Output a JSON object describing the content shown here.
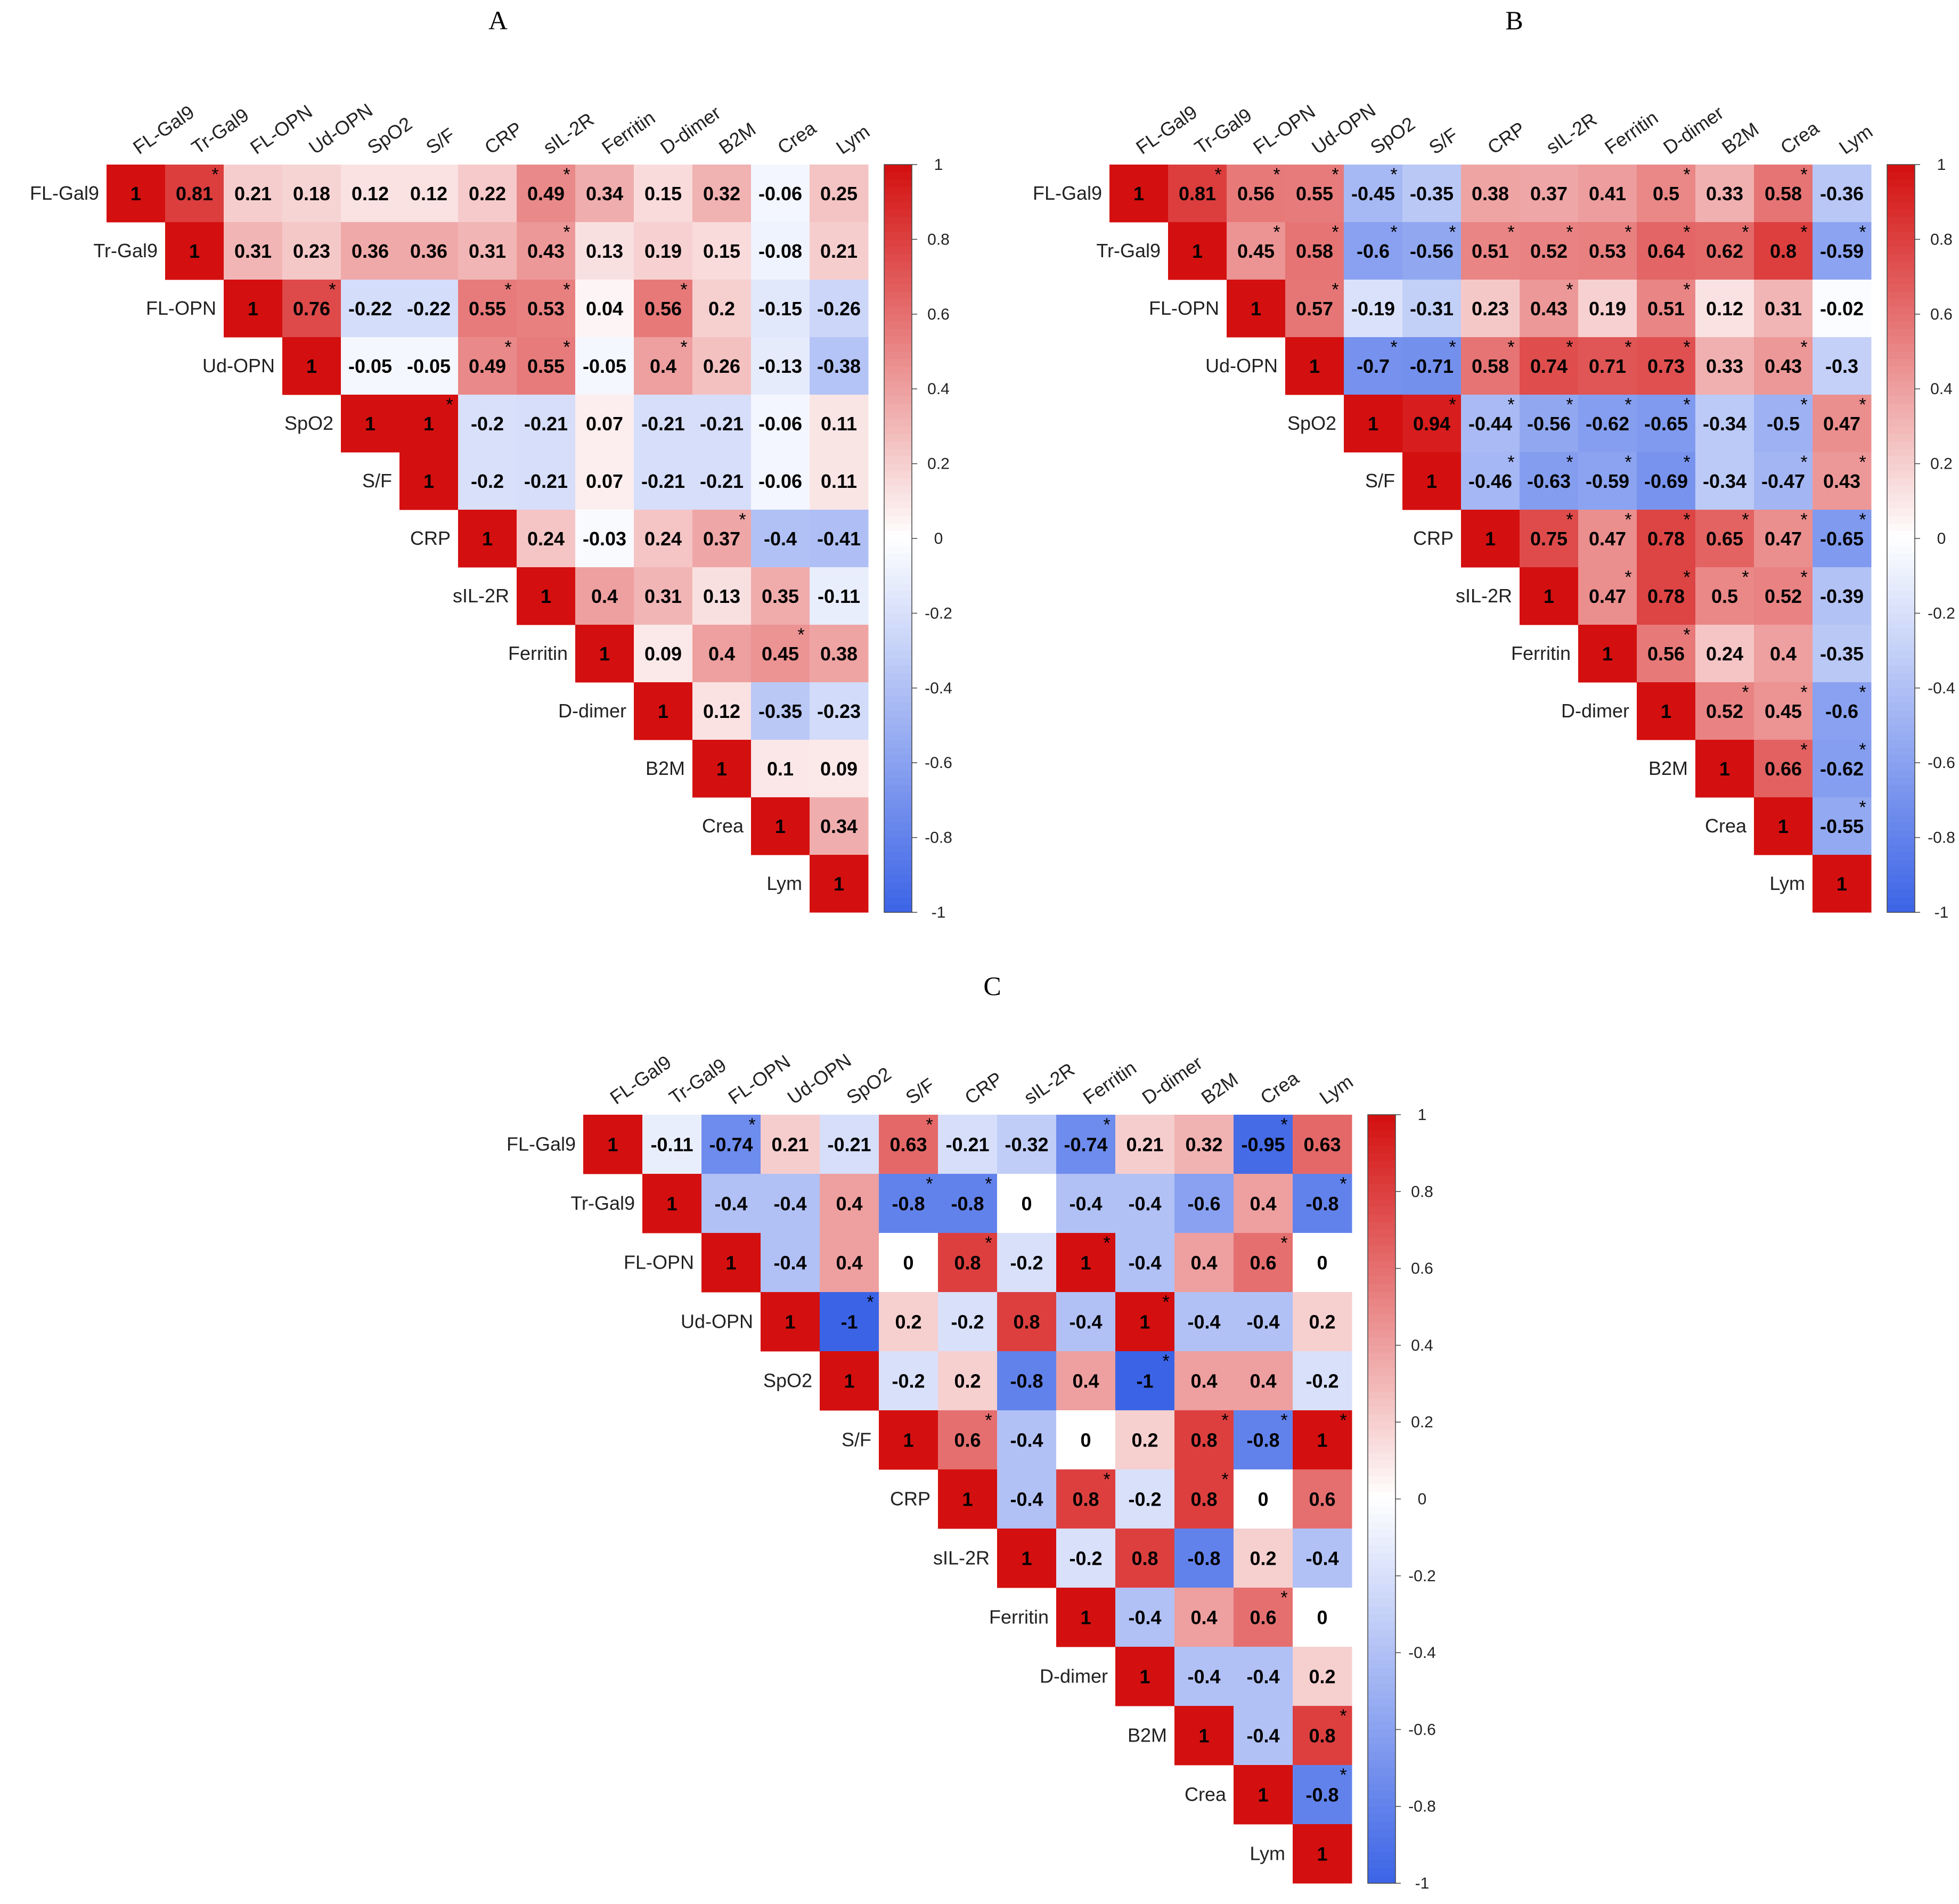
{
  "figure": {
    "panels": [
      "A",
      "B",
      "C"
    ]
  },
  "colors": {
    "negative": "#3b63e6",
    "neutral": "#ffffff",
    "positive": "#d40f0f",
    "text": "#000000"
  },
  "chart_data": [
    {
      "panel": "A",
      "type": "heatmap",
      "variables": [
        "FL-Gal9",
        "Tr-Gal9",
        "FL-OPN",
        "Ud-OPN",
        "SpO2",
        "S/F",
        "CRP",
        "sIL-2R",
        "Ferritin",
        "D-dimer",
        "B2M",
        "Crea",
        "Lym"
      ],
      "values": [
        [
          1,
          0.81,
          0.21,
          0.18,
          0.12,
          0.12,
          0.22,
          0.49,
          0.34,
          0.15,
          0.32,
          -0.06,
          0.25
        ],
        [
          null,
          1,
          0.31,
          0.23,
          0.36,
          0.36,
          0.31,
          0.43,
          0.13,
          0.19,
          0.15,
          -0.08,
          0.21
        ],
        [
          null,
          null,
          1,
          0.76,
          -0.22,
          -0.22,
          0.55,
          0.53,
          0.04,
          0.56,
          0.2,
          -0.15,
          -0.26
        ],
        [
          null,
          null,
          null,
          1,
          -0.05,
          -0.05,
          0.49,
          0.55,
          -0.05,
          0.4,
          0.26,
          -0.13,
          -0.38
        ],
        [
          null,
          null,
          null,
          null,
          1,
          1,
          -0.2,
          -0.21,
          0.07,
          -0.21,
          -0.21,
          -0.06,
          0.11
        ],
        [
          null,
          null,
          null,
          null,
          null,
          1,
          -0.2,
          -0.21,
          0.07,
          -0.21,
          -0.21,
          -0.06,
          0.11
        ],
        [
          null,
          null,
          null,
          null,
          null,
          null,
          1,
          0.24,
          -0.03,
          0.24,
          0.37,
          -0.4,
          -0.41
        ],
        [
          null,
          null,
          null,
          null,
          null,
          null,
          null,
          1,
          0.4,
          0.31,
          0.13,
          0.35,
          -0.11
        ],
        [
          null,
          null,
          null,
          null,
          null,
          null,
          null,
          null,
          1,
          0.09,
          0.4,
          0.45,
          0.38
        ],
        [
          null,
          null,
          null,
          null,
          null,
          null,
          null,
          null,
          null,
          1,
          0.12,
          -0.35,
          -0.23
        ],
        [
          null,
          null,
          null,
          null,
          null,
          null,
          null,
          null,
          null,
          null,
          1,
          0.1,
          0.09
        ],
        [
          null,
          null,
          null,
          null,
          null,
          null,
          null,
          null,
          null,
          null,
          null,
          1,
          0.34
        ],
        [
          null,
          null,
          null,
          null,
          null,
          null,
          null,
          null,
          null,
          null,
          null,
          null,
          1
        ]
      ],
      "significant": [
        [
          0,
          1
        ],
        [
          0,
          7
        ],
        [
          1,
          7
        ],
        [
          2,
          3
        ],
        [
          2,
          6
        ],
        [
          2,
          7
        ],
        [
          2,
          9
        ],
        [
          3,
          6
        ],
        [
          3,
          7
        ],
        [
          3,
          9
        ],
        [
          4,
          5
        ],
        [
          6,
          10
        ],
        [
          8,
          11
        ]
      ],
      "colorbar": {
        "range": [
          -1,
          1
        ],
        "ticks": [
          "1",
          "0.8",
          "0.6",
          "0.4",
          "0.2",
          "0",
          "-0.2",
          "-0.4",
          "-0.6",
          "-0.8",
          "-1"
        ]
      }
    },
    {
      "panel": "B",
      "type": "heatmap",
      "variables": [
        "FL-Gal9",
        "Tr-Gal9",
        "FL-OPN",
        "Ud-OPN",
        "SpO2",
        "S/F",
        "CRP",
        "sIL-2R",
        "Ferritin",
        "D-dimer",
        "B2M",
        "Crea",
        "Lym"
      ],
      "values": [
        [
          1,
          0.81,
          0.56,
          0.55,
          -0.45,
          -0.35,
          0.38,
          0.37,
          0.41,
          0.5,
          0.33,
          0.58,
          -0.36
        ],
        [
          null,
          1,
          0.45,
          0.58,
          -0.6,
          -0.56,
          0.51,
          0.52,
          0.53,
          0.64,
          0.62,
          0.8,
          -0.59
        ],
        [
          null,
          null,
          1,
          0.57,
          -0.19,
          -0.31,
          0.23,
          0.43,
          0.19,
          0.51,
          0.12,
          0.31,
          -0.02
        ],
        [
          null,
          null,
          null,
          1,
          -0.7,
          -0.71,
          0.58,
          0.74,
          0.71,
          0.73,
          0.33,
          0.43,
          -0.3
        ],
        [
          null,
          null,
          null,
          null,
          1,
          0.94,
          -0.44,
          -0.56,
          -0.62,
          -0.65,
          -0.34,
          -0.5,
          0.47
        ],
        [
          null,
          null,
          null,
          null,
          null,
          1,
          -0.46,
          -0.63,
          -0.59,
          -0.69,
          -0.34,
          -0.47,
          0.43
        ],
        [
          null,
          null,
          null,
          null,
          null,
          null,
          1,
          0.75,
          0.47,
          0.78,
          0.65,
          0.47,
          -0.65
        ],
        [
          null,
          null,
          null,
          null,
          null,
          null,
          null,
          1,
          0.47,
          0.78,
          0.5,
          0.52,
          -0.39
        ],
        [
          null,
          null,
          null,
          null,
          null,
          null,
          null,
          null,
          1,
          0.56,
          0.24,
          0.4,
          -0.35
        ],
        [
          null,
          null,
          null,
          null,
          null,
          null,
          null,
          null,
          null,
          1,
          0.52,
          0.45,
          -0.6
        ],
        [
          null,
          null,
          null,
          null,
          null,
          null,
          null,
          null,
          null,
          null,
          1,
          0.66,
          -0.62
        ],
        [
          null,
          null,
          null,
          null,
          null,
          null,
          null,
          null,
          null,
          null,
          null,
          1,
          -0.55
        ],
        [
          null,
          null,
          null,
          null,
          null,
          null,
          null,
          null,
          null,
          null,
          null,
          null,
          1
        ]
      ],
      "significant": [
        [
          0,
          1
        ],
        [
          0,
          2
        ],
        [
          0,
          3
        ],
        [
          0,
          4
        ],
        [
          0,
          9
        ],
        [
          0,
          11
        ],
        [
          1,
          2
        ],
        [
          1,
          3
        ],
        [
          1,
          4
        ],
        [
          1,
          5
        ],
        [
          1,
          6
        ],
        [
          1,
          7
        ],
        [
          1,
          8
        ],
        [
          1,
          9
        ],
        [
          1,
          10
        ],
        [
          1,
          11
        ],
        [
          1,
          12
        ],
        [
          2,
          3
        ],
        [
          2,
          7
        ],
        [
          2,
          9
        ],
        [
          3,
          4
        ],
        [
          3,
          5
        ],
        [
          3,
          6
        ],
        [
          3,
          7
        ],
        [
          3,
          8
        ],
        [
          3,
          9
        ],
        [
          3,
          11
        ],
        [
          4,
          5
        ],
        [
          4,
          6
        ],
        [
          4,
          7
        ],
        [
          4,
          8
        ],
        [
          4,
          9
        ],
        [
          4,
          11
        ],
        [
          4,
          12
        ],
        [
          5,
          6
        ],
        [
          5,
          7
        ],
        [
          5,
          8
        ],
        [
          5,
          9
        ],
        [
          5,
          11
        ],
        [
          5,
          12
        ],
        [
          6,
          7
        ],
        [
          6,
          8
        ],
        [
          6,
          9
        ],
        [
          6,
          10
        ],
        [
          6,
          11
        ],
        [
          6,
          12
        ],
        [
          7,
          8
        ],
        [
          7,
          9
        ],
        [
          7,
          10
        ],
        [
          7,
          11
        ],
        [
          8,
          9
        ],
        [
          9,
          10
        ],
        [
          9,
          11
        ],
        [
          9,
          12
        ],
        [
          10,
          11
        ],
        [
          10,
          12
        ],
        [
          11,
          12
        ]
      ],
      "colorbar": {
        "range": [
          -1,
          1
        ],
        "ticks": [
          "1",
          "0.8",
          "0.6",
          "0.4",
          "0.2",
          "0",
          "-0.2",
          "-0.4",
          "-0.6",
          "-0.8",
          "-1"
        ]
      }
    },
    {
      "panel": "C",
      "type": "heatmap",
      "variables": [
        "FL-Gal9",
        "Tr-Gal9",
        "FL-OPN",
        "Ud-OPN",
        "SpO2",
        "S/F",
        "CRP",
        "sIL-2R",
        "Ferritin",
        "D-dimer",
        "B2M",
        "Crea",
        "Lym"
      ],
      "values": [
        [
          1,
          -0.11,
          -0.74,
          0.21,
          -0.21,
          0.63,
          -0.21,
          -0.32,
          -0.74,
          0.21,
          0.32,
          -0.95,
          0.63
        ],
        [
          null,
          1,
          -0.4,
          -0.4,
          0.4,
          -0.8,
          -0.8,
          0,
          -0.4,
          -0.4,
          -0.6,
          0.4,
          -0.8
        ],
        [
          null,
          null,
          1,
          -0.4,
          0.4,
          0,
          0.8,
          -0.2,
          1,
          -0.4,
          0.4,
          0.6,
          0
        ],
        [
          null,
          null,
          null,
          1,
          -1,
          0.2,
          -0.2,
          0.8,
          -0.4,
          1,
          -0.4,
          -0.4,
          0.2
        ],
        [
          null,
          null,
          null,
          null,
          1,
          -0.2,
          0.2,
          -0.8,
          0.4,
          -1,
          0.4,
          0.4,
          -0.2
        ],
        [
          null,
          null,
          null,
          null,
          null,
          1,
          0.6,
          -0.4,
          0,
          0.2,
          0.8,
          -0.8,
          1
        ],
        [
          null,
          null,
          null,
          null,
          null,
          null,
          1,
          -0.4,
          0.8,
          -0.2,
          0.8,
          0,
          0.6
        ],
        [
          null,
          null,
          null,
          null,
          null,
          null,
          null,
          1,
          -0.2,
          0.8,
          -0.8,
          0.2,
          -0.4
        ],
        [
          null,
          null,
          null,
          null,
          null,
          null,
          null,
          null,
          1,
          -0.4,
          0.4,
          0.6,
          0
        ],
        [
          null,
          null,
          null,
          null,
          null,
          null,
          null,
          null,
          null,
          1,
          -0.4,
          -0.4,
          0.2
        ],
        [
          null,
          null,
          null,
          null,
          null,
          null,
          null,
          null,
          null,
          null,
          1,
          -0.4,
          0.8
        ],
        [
          null,
          null,
          null,
          null,
          null,
          null,
          null,
          null,
          null,
          null,
          null,
          1,
          -0.8
        ],
        [
          null,
          null,
          null,
          null,
          null,
          null,
          null,
          null,
          null,
          null,
          null,
          null,
          1
        ]
      ],
      "significant": [
        [
          0,
          2
        ],
        [
          0,
          5
        ],
        [
          0,
          8
        ],
        [
          0,
          11
        ],
        [
          1,
          5
        ],
        [
          1,
          6
        ],
        [
          1,
          12
        ],
        [
          2,
          6
        ],
        [
          2,
          8
        ],
        [
          2,
          11
        ],
        [
          3,
          4
        ],
        [
          3,
          9
        ],
        [
          4,
          9
        ],
        [
          5,
          6
        ],
        [
          5,
          10
        ],
        [
          5,
          11
        ],
        [
          5,
          12
        ],
        [
          6,
          8
        ],
        [
          6,
          10
        ],
        [
          8,
          11
        ],
        [
          10,
          12
        ],
        [
          11,
          12
        ]
      ],
      "colorbar": {
        "range": [
          -1,
          1
        ],
        "ticks": [
          "1",
          "0.8",
          "0.6",
          "0.4",
          "0.2",
          "0",
          "-0.2",
          "-0.4",
          "-0.6",
          "-0.8",
          "-1"
        ]
      }
    }
  ]
}
